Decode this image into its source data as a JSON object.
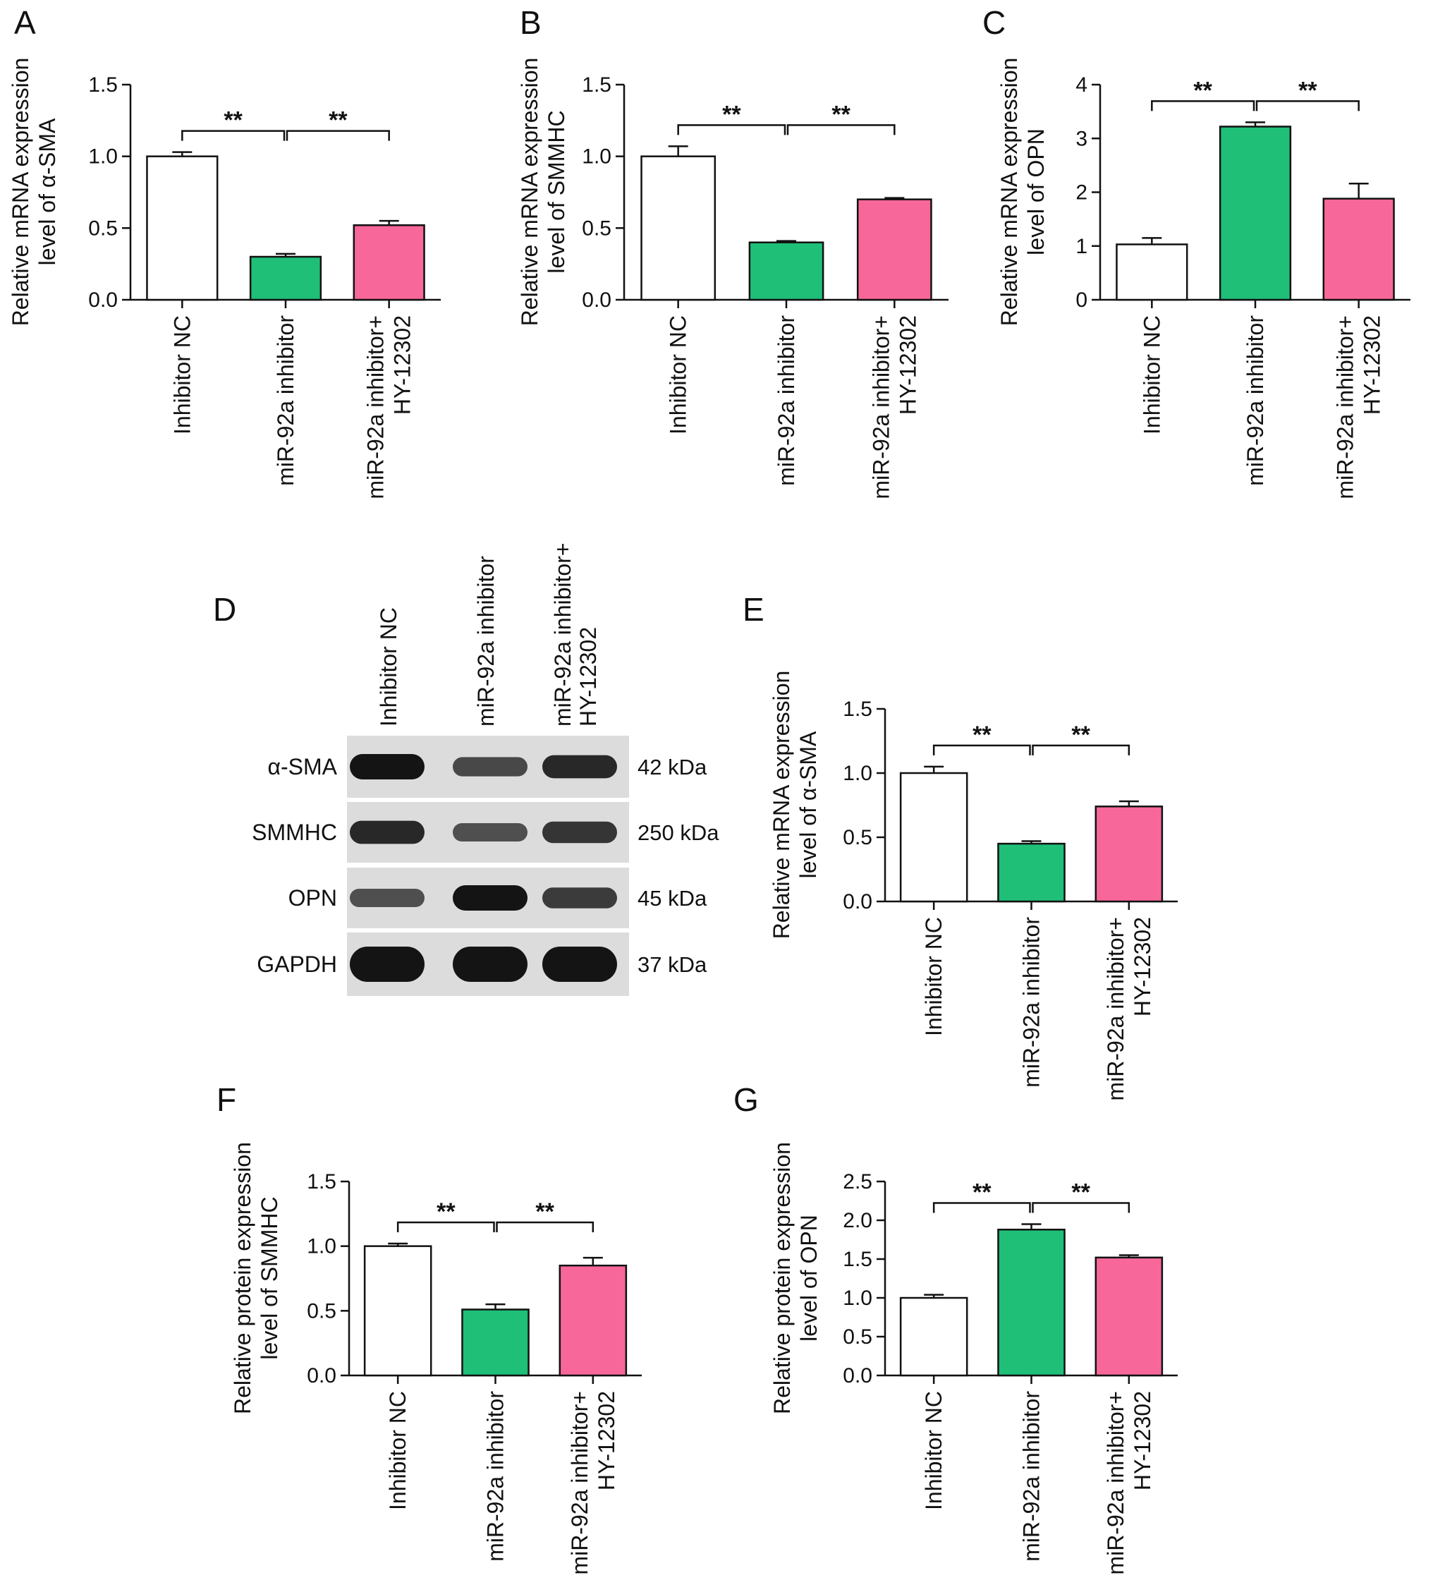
{
  "colors": {
    "control": "#ffffff",
    "inhibitor": "#1fbf78",
    "rescue": "#f7679a",
    "axis": "#111111"
  },
  "charts": [
    {
      "id": "A",
      "letter": "A",
      "type": "bar",
      "ylabel": [
        "Relative mRNA expression",
        "level of α-SMA"
      ],
      "categories": [
        [
          "Inhibitor NC"
        ],
        [
          "miR-92a inhibitor"
        ],
        [
          "miR-92a inhibitor+",
          "HY-12302"
        ]
      ],
      "values": [
        1.0,
        0.3,
        0.52
      ],
      "errors": [
        0.03,
        0.02,
        0.03
      ],
      "ylim": [
        0,
        1.5
      ],
      "ticks": [
        "0.0",
        "0.5",
        "1.0",
        "1.5"
      ],
      "tick_values": [
        0,
        0.5,
        1.0,
        1.5
      ],
      "significance": [
        {
          "from": 0,
          "to": 1,
          "label": "**"
        },
        {
          "from": 1,
          "to": 2,
          "label": "**"
        }
      ]
    },
    {
      "id": "B",
      "letter": "B",
      "type": "bar",
      "ylabel": [
        "Relative mRNA expression",
        "level of SMMHC"
      ],
      "categories": [
        [
          "Inhibitor NC"
        ],
        [
          "miR-92a inhibitor"
        ],
        [
          "miR-92a inhibitor+",
          "HY-12302"
        ]
      ],
      "values": [
        1.0,
        0.4,
        0.7
      ],
      "errors": [
        0.07,
        0.01,
        0.01
      ],
      "ylim": [
        0,
        1.5
      ],
      "ticks": [
        "0.0",
        "0.5",
        "1.0",
        "1.5"
      ],
      "tick_values": [
        0,
        0.5,
        1.0,
        1.5
      ],
      "significance": [
        {
          "from": 0,
          "to": 1,
          "label": "**"
        },
        {
          "from": 1,
          "to": 2,
          "label": "**"
        }
      ]
    },
    {
      "id": "C",
      "letter": "C",
      "type": "bar",
      "ylabel": [
        "Relative mRNA expression",
        "level of OPN"
      ],
      "categories": [
        [
          "Inhibitor NC"
        ],
        [
          "miR-92a inhibitor"
        ],
        [
          "miR-92a inhibitor+",
          "HY-12302"
        ]
      ],
      "values": [
        1.03,
        3.22,
        1.88
      ],
      "errors": [
        0.12,
        0.08,
        0.28
      ],
      "ylim": [
        0,
        4
      ],
      "ticks": [
        "0",
        "1",
        "2",
        "3",
        "4"
      ],
      "tick_values": [
        0,
        1,
        2,
        3,
        4
      ],
      "significance": [
        {
          "from": 0,
          "to": 1,
          "label": "**"
        },
        {
          "from": 1,
          "to": 2,
          "label": "**"
        }
      ]
    },
    {
      "id": "E",
      "letter": "E",
      "type": "bar",
      "ylabel": [
        "Relative mRNA expression",
        "level of α-SMA"
      ],
      "categories": [
        [
          "Inhibitor NC"
        ],
        [
          "miR-92a inhibitor"
        ],
        [
          "miR-92a inhibitor+",
          "HY-12302"
        ]
      ],
      "values": [
        1.0,
        0.45,
        0.74
      ],
      "errors": [
        0.05,
        0.02,
        0.04
      ],
      "ylim": [
        0,
        1.5
      ],
      "ticks": [
        "0.0",
        "0.5",
        "1.0",
        "1.5"
      ],
      "tick_values": [
        0,
        0.5,
        1.0,
        1.5
      ],
      "significance": [
        {
          "from": 0,
          "to": 1,
          "label": "**"
        },
        {
          "from": 1,
          "to": 2,
          "label": "**"
        }
      ]
    },
    {
      "id": "F",
      "letter": "F",
      "type": "bar",
      "ylabel": [
        "Relative protein expression",
        "level of SMMHC"
      ],
      "categories": [
        [
          "Inhibitor NC"
        ],
        [
          "miR-92a inhibitor"
        ],
        [
          "miR-92a inhibitor+",
          "HY-12302"
        ]
      ],
      "values": [
        1.0,
        0.51,
        0.85
      ],
      "errors": [
        0.02,
        0.04,
        0.06
      ],
      "ylim": [
        0,
        1.5
      ],
      "ticks": [
        "0.0",
        "0.5",
        "1.0",
        "1.5"
      ],
      "tick_values": [
        0,
        0.5,
        1.0,
        1.5
      ],
      "significance": [
        {
          "from": 0,
          "to": 1,
          "label": "**"
        },
        {
          "from": 1,
          "to": 2,
          "label": "**"
        }
      ]
    },
    {
      "id": "G",
      "letter": "G",
      "type": "bar",
      "ylabel": [
        "Relative protein expression",
        "level of OPN"
      ],
      "categories": [
        [
          "Inhibitor NC"
        ],
        [
          "miR-92a inhibitor"
        ],
        [
          "miR-92a inhibitor+",
          "HY-12302"
        ]
      ],
      "values": [
        1.0,
        1.88,
        1.52
      ],
      "errors": [
        0.04,
        0.07,
        0.03
      ],
      "ylim": [
        0,
        2.5
      ],
      "ticks": [
        "0.0",
        "0.5",
        "1.0",
        "1.5",
        "2.0",
        "2.5"
      ],
      "tick_values": [
        0,
        0.5,
        1.0,
        1.5,
        2.0,
        2.5
      ],
      "significance": [
        {
          "from": 0,
          "to": 1,
          "label": "**"
        },
        {
          "from": 1,
          "to": 2,
          "label": "**"
        }
      ]
    }
  ],
  "blot": {
    "letter": "D",
    "lanes": [
      [
        "Inhibitor NC"
      ],
      [
        "miR-92a inhibitor"
      ],
      [
        "miR-92a inhibitor+",
        "HY-12302"
      ]
    ],
    "rows": [
      {
        "protein": "α-SMA",
        "size": "42 kDa",
        "intensity": [
          1.0,
          0.6,
          0.85
        ]
      },
      {
        "protein": "SMMHC",
        "size": "250 kDa",
        "intensity": [
          0.85,
          0.55,
          0.75
        ]
      },
      {
        "protein": "OPN",
        "size": "45 kDa",
        "intensity": [
          0.55,
          1.0,
          0.7
        ]
      },
      {
        "protein": "GAPDH",
        "size": "37 kDa",
        "intensity": [
          1.0,
          1.0,
          1.0
        ]
      }
    ]
  }
}
